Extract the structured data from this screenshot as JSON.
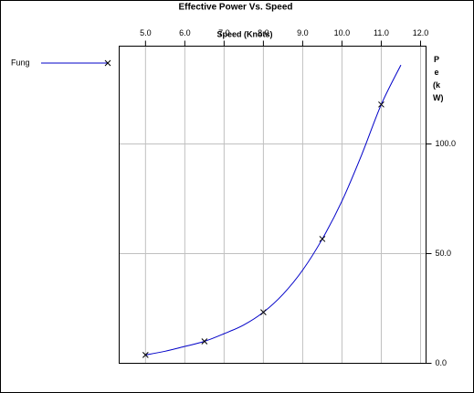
{
  "chart_data": {
    "type": "line",
    "title": "Effective Power Vs. Speed",
    "xlabel": "Speed (Knots)",
    "ylabel": "Pe (kW)",
    "xlim": [
      4.33,
      12.14
    ],
    "xticks": [
      {
        "value": 5,
        "label": "5.0"
      },
      {
        "value": 6,
        "label": "6.0"
      },
      {
        "value": 7,
        "label": "7.0"
      },
      {
        "value": 8,
        "label": "8.0"
      },
      {
        "value": 9,
        "label": "9.0"
      },
      {
        "value": 10,
        "label": "10.0"
      },
      {
        "value": 11,
        "label": "11.0"
      },
      {
        "value": 12,
        "label": "12.0"
      }
    ],
    "ylim": [
      0,
      144.6
    ],
    "yticks": [
      {
        "value": 0,
        "label": "0.0"
      },
      {
        "value": 50,
        "label": "50.0"
      },
      {
        "value": 100,
        "label": "100.0"
      }
    ],
    "grid": true,
    "legend": "left",
    "series": [
      {
        "name": "Fung",
        "color": "#0000c8",
        "x": [
          5.0,
          5.5,
          6.0,
          6.5,
          7.0,
          7.5,
          8.0,
          8.5,
          9.0,
          9.5,
          10.0,
          10.5,
          11.0,
          11.5
        ],
        "values": [
          3.8,
          5.5,
          7.7,
          10,
          13.5,
          17.5,
          23.3,
          31.5,
          42.5,
          56.7,
          74,
          95,
          118,
          136
        ],
        "markers": {
          "x": [
            5.0,
            6.5,
            8.0,
            9.5,
            11.0
          ],
          "values": [
            3.8,
            10,
            23.3,
            56.7,
            118
          ]
        }
      }
    ]
  }
}
